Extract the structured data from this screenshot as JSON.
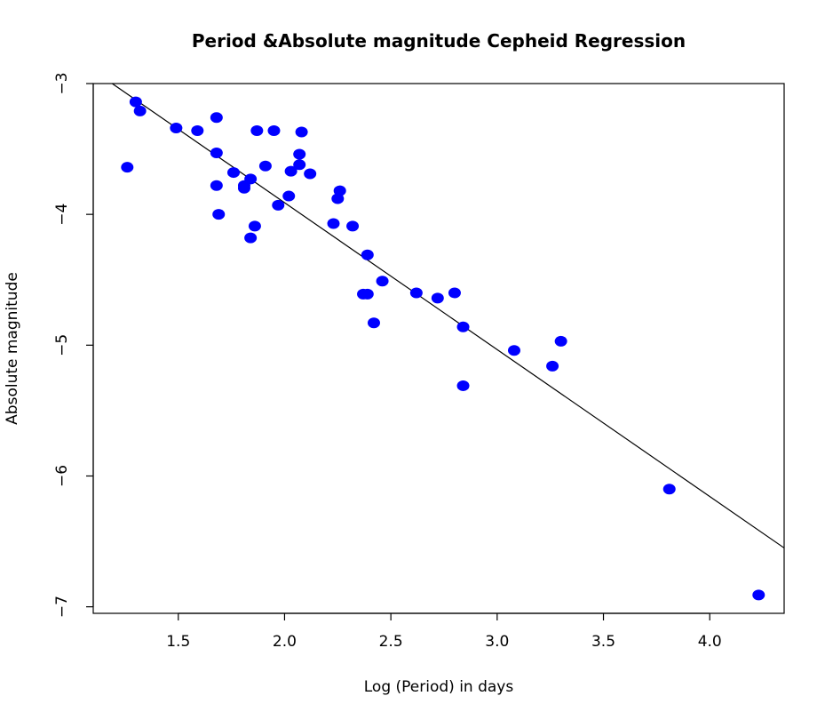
{
  "colors": {
    "point": "#0000ff",
    "line": "#000000",
    "background": "#ffffff"
  },
  "chart_data": {
    "type": "scatter",
    "title": "Period &Absolute magnitude Cepheid Regression",
    "xlabel": "Log (Period) in days",
    "ylabel": "Absolute magnitude",
    "xlim": [
      1.1,
      4.35
    ],
    "ylim": [
      -7.05,
      -3.0
    ],
    "xticks": [
      1.5,
      2.0,
      2.5,
      3.0,
      3.5,
      4.0
    ],
    "xtick_labels": [
      "1.5",
      "2.0",
      "2.5",
      "3.0",
      "3.5",
      "4.0"
    ],
    "yticks": [
      -3,
      -4,
      -5,
      -6,
      -7
    ],
    "ytick_labels": [
      "−3",
      "−4",
      "−5",
      "−6",
      "−7"
    ],
    "grid": false,
    "legend": "none",
    "points": [
      [
        1.26,
        -3.64
      ],
      [
        1.3,
        -3.14
      ],
      [
        1.32,
        -3.21
      ],
      [
        1.49,
        -3.34
      ],
      [
        1.59,
        -3.36
      ],
      [
        1.68,
        -3.26
      ],
      [
        1.68,
        -3.53
      ],
      [
        1.68,
        -3.78
      ],
      [
        1.69,
        -4.0
      ],
      [
        1.76,
        -3.68
      ],
      [
        1.81,
        -3.78
      ],
      [
        1.81,
        -3.8
      ],
      [
        1.84,
        -3.73
      ],
      [
        1.84,
        -4.18
      ],
      [
        1.86,
        -4.09
      ],
      [
        1.87,
        -3.36
      ],
      [
        1.91,
        -3.63
      ],
      [
        1.95,
        -3.36
      ],
      [
        1.97,
        -3.93
      ],
      [
        2.02,
        -3.86
      ],
      [
        2.03,
        -3.67
      ],
      [
        2.07,
        -3.54
      ],
      [
        2.07,
        -3.62
      ],
      [
        2.08,
        -3.37
      ],
      [
        2.12,
        -3.69
      ],
      [
        2.23,
        -4.07
      ],
      [
        2.25,
        -3.88
      ],
      [
        2.26,
        -3.82
      ],
      [
        2.32,
        -4.09
      ],
      [
        2.37,
        -4.61
      ],
      [
        2.39,
        -4.31
      ],
      [
        2.39,
        -4.61
      ],
      [
        2.42,
        -4.83
      ],
      [
        2.46,
        -4.51
      ],
      [
        2.62,
        -4.6
      ],
      [
        2.72,
        -4.64
      ],
      [
        2.8,
        -4.6
      ],
      [
        2.84,
        -4.86
      ],
      [
        2.84,
        -5.31
      ],
      [
        3.08,
        -5.04
      ],
      [
        3.26,
        -5.16
      ],
      [
        3.3,
        -4.97
      ],
      [
        3.81,
        -6.1
      ],
      [
        4.23,
        -6.91
      ]
    ],
    "regression": {
      "x": [
        1.1,
        4.35
      ],
      "y": [
        -2.9,
        -6.55
      ]
    }
  }
}
